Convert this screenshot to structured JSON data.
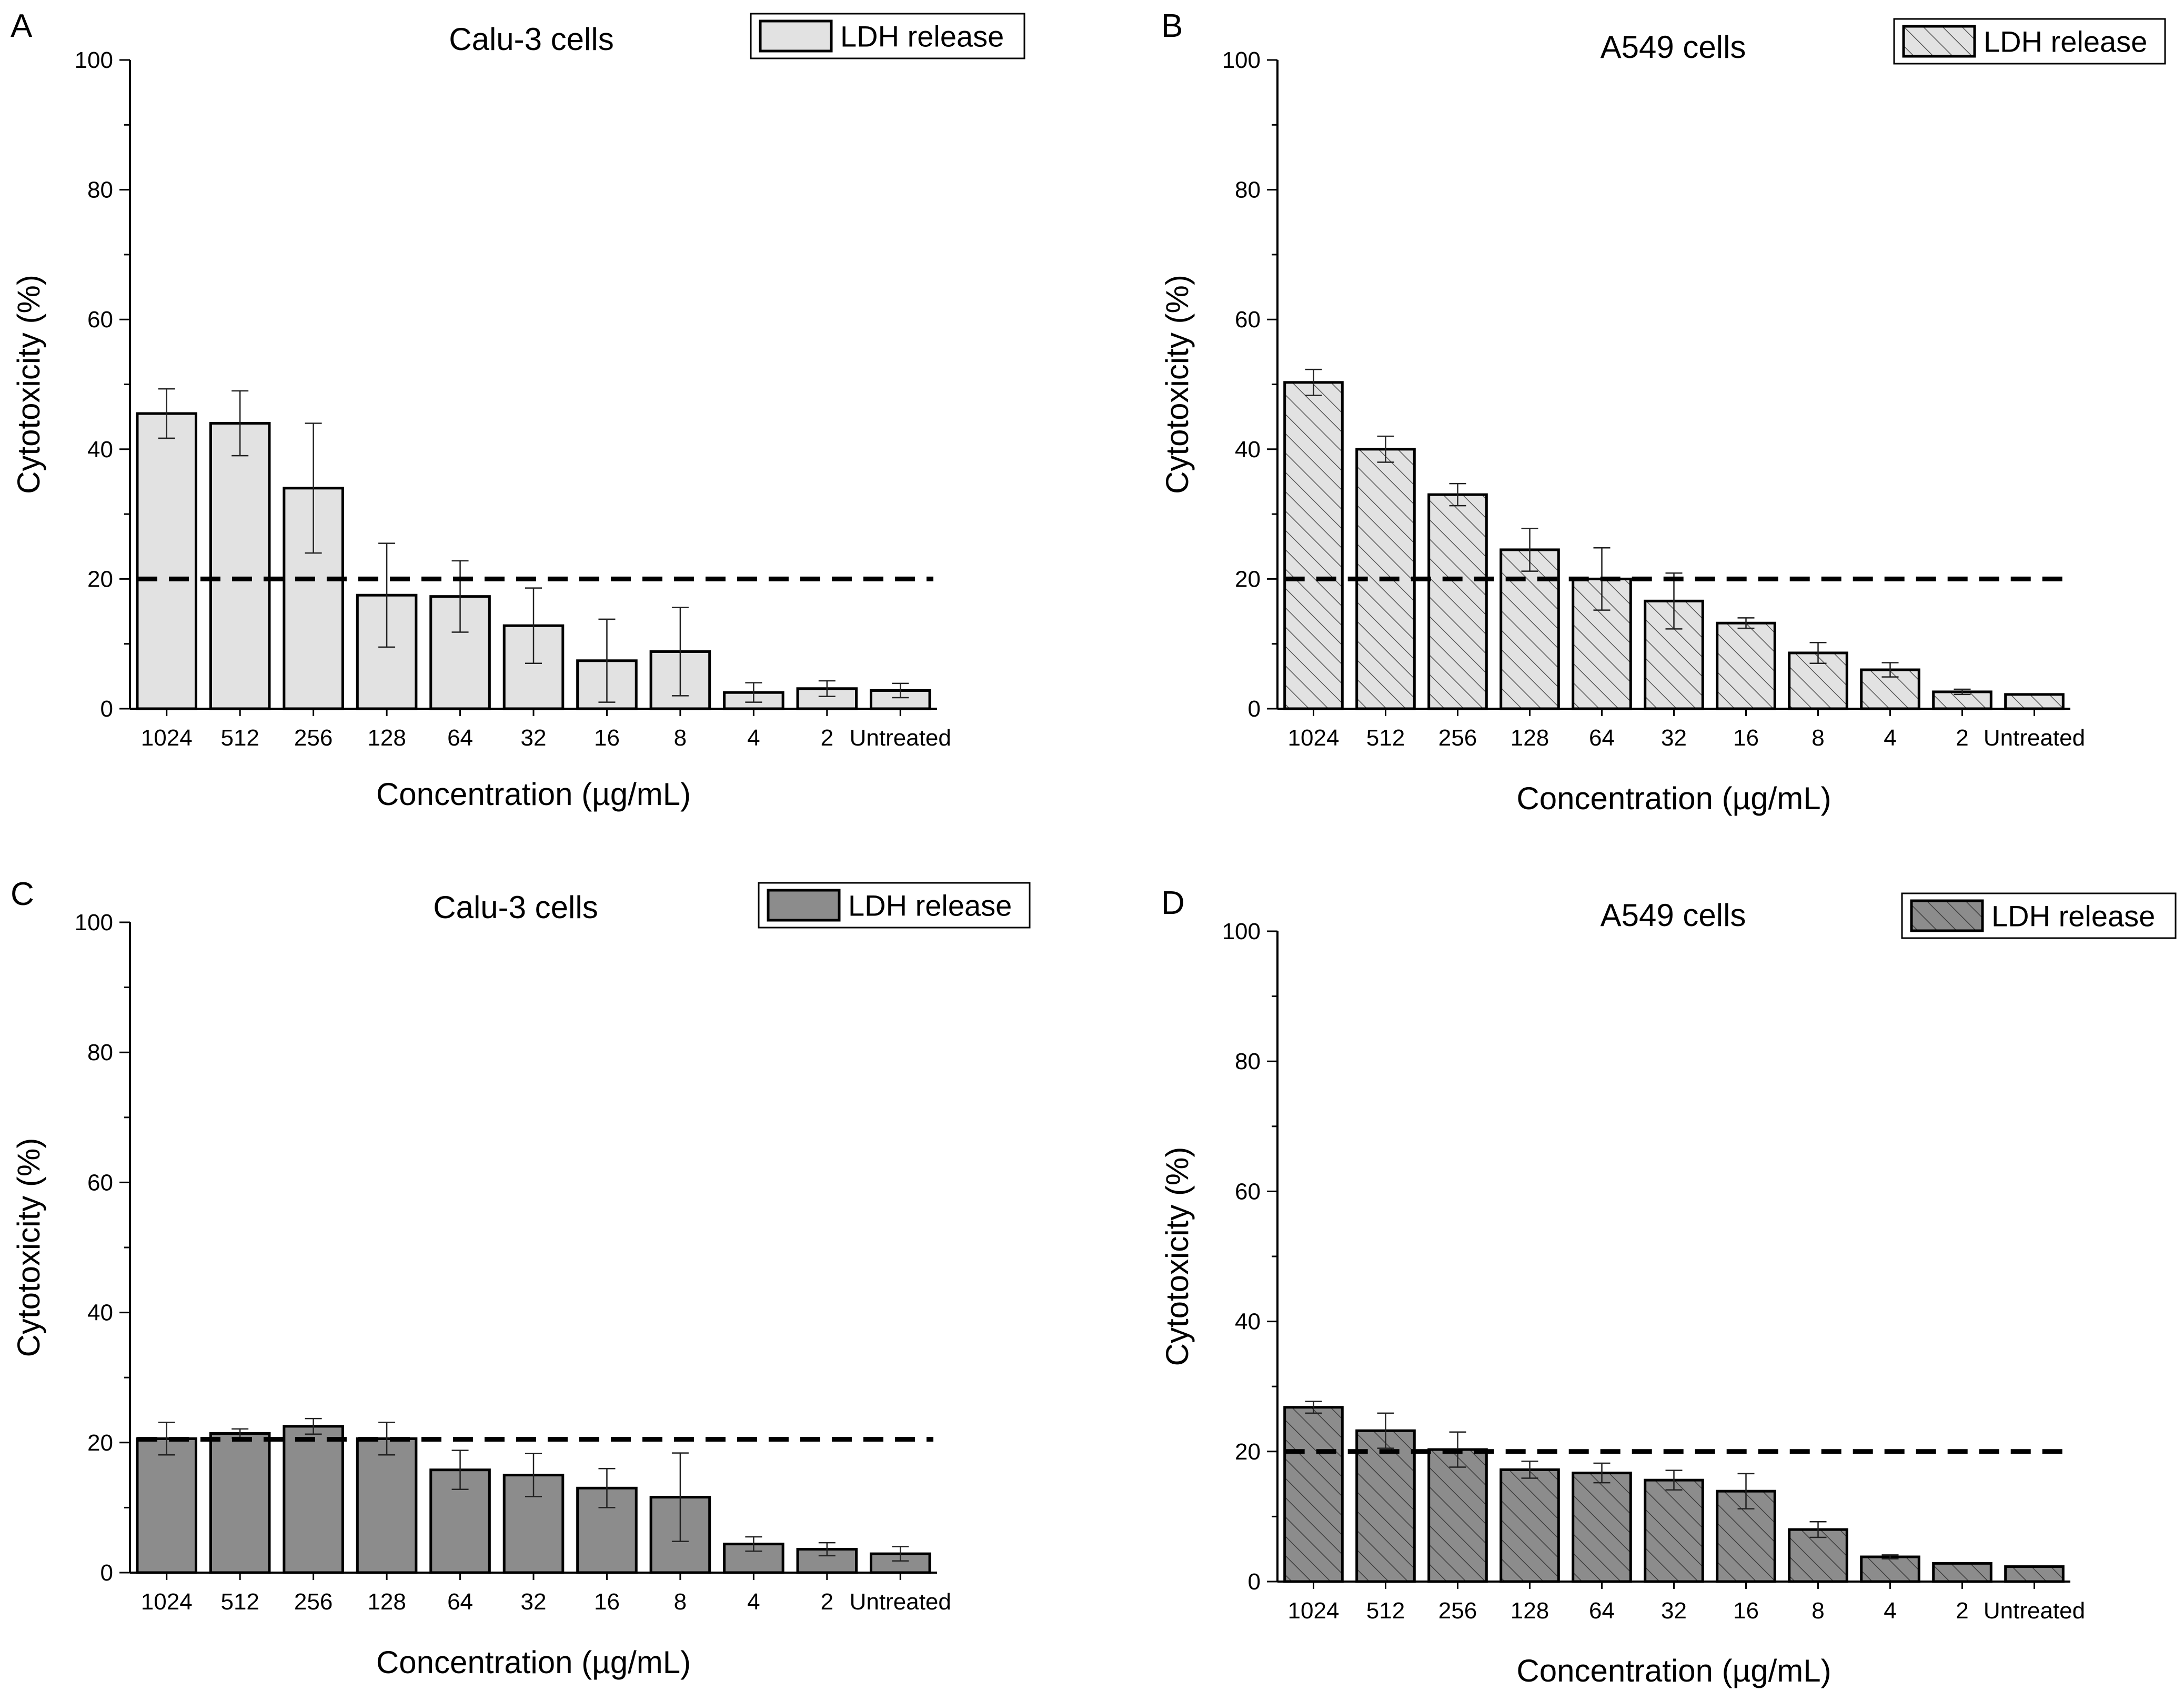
{
  "colors": {
    "light_fill": "#e2e2e2",
    "dark_fill": "#8c8c8c",
    "stroke": "#000000",
    "hatch": "#555555",
    "dark_hatch": "#3c3c3c"
  },
  "chart_data": [
    {
      "panel": "A",
      "type": "bar",
      "title": "Calu-3 cells",
      "xlabel": "Concentration (µg/mL)",
      "ylabel": "Cytotoxicity (%)",
      "ylim": [
        0,
        100
      ],
      "yticks": [
        "0",
        "20",
        "40",
        "60",
        "80",
        "100"
      ],
      "legend": {
        "label": "LDH release",
        "placement": "top-right"
      },
      "fill": "light",
      "hatched": false,
      "threshold": 20,
      "categories": [
        "1024",
        "512",
        "256",
        "128",
        "64",
        "32",
        "16",
        "8",
        "4",
        "2",
        "Untreated"
      ],
      "values": [
        45.5,
        44,
        34,
        17.5,
        17.3,
        12.8,
        7.4,
        8.8,
        2.5,
        3.1,
        2.8
      ],
      "errors": [
        3.8,
        5,
        10,
        8,
        5.5,
        5.8,
        6.4,
        6.8,
        1.5,
        1.2,
        1.1
      ]
    },
    {
      "panel": "B",
      "type": "bar",
      "title": "A549 cells",
      "xlabel": "Concentration (µg/mL)",
      "ylabel": "Cytotoxicity (%)",
      "ylim": [
        0,
        100
      ],
      "yticks": [
        "0",
        "20",
        "40",
        "60",
        "80",
        "100"
      ],
      "legend": {
        "label": "LDH release",
        "placement": "top-right"
      },
      "fill": "light",
      "hatched": true,
      "threshold": 20,
      "categories": [
        "1024",
        "512",
        "256",
        "128",
        "64",
        "32",
        "16",
        "8",
        "4",
        "2",
        "Untreated"
      ],
      "values": [
        50.3,
        40,
        33,
        24.5,
        20,
        16.6,
        13.2,
        8.6,
        6,
        2.6,
        2.2
      ],
      "errors": [
        2,
        2,
        1.7,
        3.3,
        4.8,
        4.3,
        0.8,
        1.6,
        1.1,
        0.4,
        0
      ]
    },
    {
      "panel": "C",
      "type": "bar",
      "title": "Calu-3 cells",
      "xlabel": "Concentration (µg/mL)",
      "ylabel": "Cytotoxicity (%)",
      "ylim": [
        0,
        100
      ],
      "yticks": [
        "0",
        "20",
        "40",
        "60",
        "80",
        "100"
      ],
      "legend": {
        "label": "LDH release",
        "placement": "top-right"
      },
      "fill": "dark",
      "hatched": false,
      "threshold": 20.5,
      "categories": [
        "1024",
        "512",
        "256",
        "128",
        "64",
        "32",
        "16",
        "8",
        "4",
        "2",
        "Untreated"
      ],
      "values": [
        20.6,
        21.4,
        22.5,
        20.6,
        15.8,
        15,
        13,
        11.6,
        4.4,
        3.6,
        2.9
      ],
      "errors": [
        2.5,
        0.7,
        1.2,
        2.5,
        3,
        3.3,
        3,
        6.8,
        1.1,
        1,
        1.1
      ]
    },
    {
      "panel": "D",
      "type": "bar",
      "title": "A549 cells",
      "xlabel": "Concentration (µg/mL)",
      "ylabel": "Cytotoxicity (%)",
      "ylim": [
        0,
        100
      ],
      "yticks": [
        "0",
        "20",
        "40",
        "60",
        "80",
        "100"
      ],
      "legend": {
        "label": "LDH release",
        "placement": "top-right"
      },
      "fill": "dark",
      "hatched": true,
      "threshold": 20,
      "categories": [
        "1024",
        "512",
        "256",
        "128",
        "64",
        "32",
        "16",
        "8",
        "4",
        "2",
        "Untreated"
      ],
      "values": [
        26.8,
        23.2,
        20.3,
        17.2,
        16.7,
        15.6,
        13.9,
        8,
        3.8,
        2.8,
        2.3
      ],
      "errors": [
        0.9,
        2.7,
        2.7,
        1.3,
        1.5,
        1.5,
        2.7,
        1.2,
        0.3,
        0,
        0
      ]
    }
  ]
}
